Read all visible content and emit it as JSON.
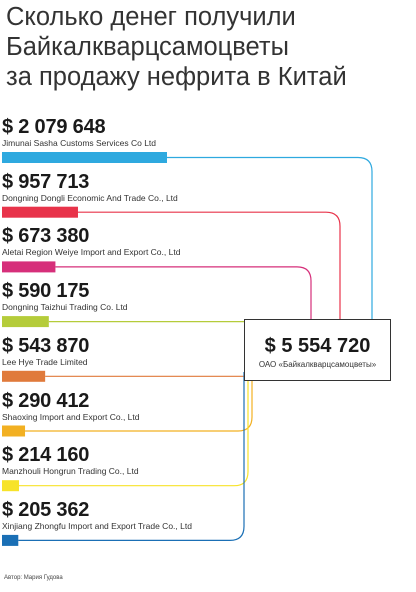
{
  "title_lines": [
    "Сколько денег получили",
    "Байкалкварцсамоцветы",
    "за продажу нефрита в Китай"
  ],
  "chart_data": {
    "type": "bar",
    "title": "Сколько денег получили Байкалкварцсамоцветы за продажу нефрита в Китай",
    "categories": [
      "Jimunai Sasha Customs Services Co Ltd",
      "Dongning Dongli Economic And Trade Co., Ltd",
      "Aletai Region Weiye Import and Export Co., Ltd",
      "Dongning Taizhui Trading Co. Ltd",
      "Lee Hye Trade Limited",
      "Shaoxing Import and Export Co., Ltd",
      "Manzhouli Hongrun Trading Co., Ltd",
      "Xinjiang Zhongfu Import and Export Trade Co., Ltd"
    ],
    "values": [
      2079648,
      957713,
      673380,
      590175,
      543870,
      290412,
      214160,
      205362
    ],
    "value_labels": [
      "$ 2 079 648",
      "$ 957 713",
      "$ 673 380",
      "$ 590 175",
      "$ 543 870",
      "$ 290 412",
      "$ 214 160",
      "$ 205 362"
    ],
    "colors": [
      "#2ea9df",
      "#e8334a",
      "#d62f7a",
      "#b5cc3a",
      "#e07a3b",
      "#f2b022",
      "#f7e32a",
      "#1a6fb5"
    ],
    "total": {
      "value": 5554720,
      "label": "$ 5 554 720",
      "recipient": "ОАО «Байкалкварцсамоцветы»"
    }
  },
  "credit": "Автор: Мария Гудова"
}
